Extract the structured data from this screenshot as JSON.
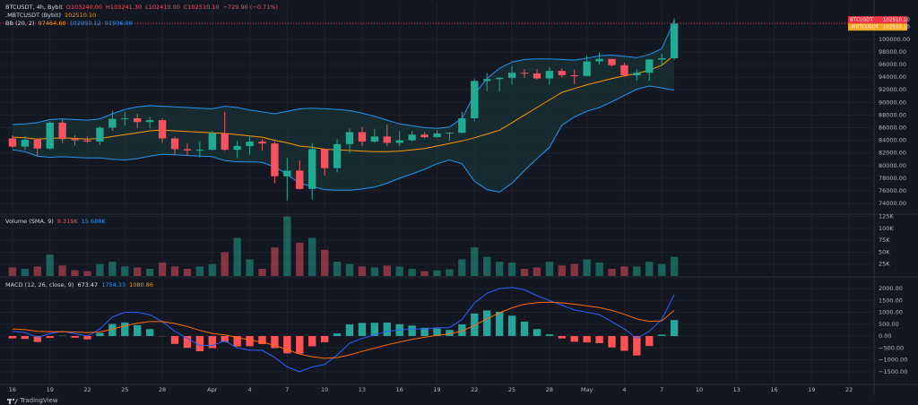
{
  "chart_data": [
    {
      "type": "candlestick",
      "title": "BTCUSDT, 4h, Bybit",
      "header": [
        "O103240.00",
        "H103241.30",
        "L102410.00",
        "C102510.10",
        "−729.90 (−0.71%)"
      ],
      "compare_label": ".MBTCUSDT (Bybit)",
      "compare_value": "102510.10",
      "bb_label": "BB (20, 2)",
      "bb_values": [
        "97464.60",
        "102993.12",
        "91936.08"
      ],
      "x": [
        "03-16",
        "03-17",
        "03-18",
        "03-19",
        "03-20",
        "03-21",
        "03-22",
        "03-23",
        "03-24",
        "03-25",
        "03-26",
        "03-27",
        "03-28",
        "03-29",
        "03-30",
        "03-31",
        "04-01",
        "04-02",
        "04-03",
        "04-04",
        "04-05",
        "04-06",
        "04-07",
        "04-08",
        "04-09",
        "04-10",
        "04-11",
        "04-12",
        "04-13",
        "04-14",
        "04-15",
        "04-16",
        "04-17",
        "04-18",
        "04-19",
        "04-20",
        "04-21",
        "04-22",
        "04-23",
        "04-24",
        "04-25",
        "04-26",
        "04-27",
        "04-28",
        "04-29",
        "04-30",
        "05-01",
        "05-02",
        "05-03",
        "05-04",
        "05-05",
        "05-06",
        "05-07",
        "05-08"
      ],
      "open": [
        84300,
        83000,
        84100,
        82700,
        86800,
        84200,
        84000,
        83800,
        86000,
        87400,
        87500,
        86900,
        87200,
        84300,
        82600,
        82400,
        82500,
        85100,
        82500,
        83100,
        83800,
        83500,
        78300,
        79200,
        76300,
        82600,
        79600,
        83400,
        85300,
        83800,
        84600,
        83600,
        84000,
        84900,
        84500,
        85100,
        85200,
        87500,
        93400,
        93700,
        93900,
        94700,
        94600,
        93800,
        95000,
        94300,
        94200,
        96500,
        96900,
        95900,
        94300,
        94700,
        96800,
        97000
      ],
      "high": [
        84800,
        84700,
        84200,
        87000,
        87400,
        84800,
        84600,
        86200,
        88700,
        88500,
        88200,
        87700,
        87500,
        84600,
        83500,
        83900,
        85500,
        88500,
        83900,
        84700,
        84200,
        83800,
        81200,
        80800,
        83500,
        82700,
        84200,
        85900,
        86100,
        85800,
        86500,
        85500,
        85500,
        85300,
        85600,
        85300,
        88500,
        93800,
        94700,
        94000,
        95800,
        95300,
        95300,
        95600,
        95400,
        95200,
        97400,
        97900,
        96900,
        96300,
        95200,
        96900,
        97700,
        103300
      ],
      "low": [
        82800,
        82500,
        81600,
        82500,
        83600,
        83200,
        83600,
        83300,
        85500,
        86300,
        85900,
        85900,
        83600,
        81600,
        81600,
        81300,
        82400,
        82300,
        81200,
        81700,
        82400,
        77200,
        74500,
        76200,
        74600,
        78400,
        78900,
        82000,
        83100,
        83600,
        83100,
        83100,
        83800,
        84300,
        84400,
        83900,
        85100,
        87000,
        91800,
        91700,
        92800,
        93900,
        93600,
        92800,
        93900,
        92900,
        94100,
        96000,
        95700,
        94100,
        93500,
        93400,
        95800,
        96800
      ],
      "close": [
        83000,
        84100,
        82700,
        86800,
        84200,
        84000,
        83800,
        86000,
        87400,
        87500,
        86900,
        87200,
        84300,
        82600,
        82400,
        82500,
        85100,
        82500,
        83100,
        83800,
        83500,
        78300,
        79200,
        76300,
        82600,
        79600,
        83400,
        85300,
        83800,
        84600,
        83600,
        84000,
        84900,
        84500,
        85100,
        85200,
        87500,
        93400,
        93700,
        93900,
        94700,
        94600,
        93800,
        95000,
        94300,
        94200,
        96500,
        96900,
        95900,
        94300,
        94700,
        96800,
        97000,
        102500
      ],
      "bb_upper": [
        86500,
        86600,
        86800,
        87300,
        87400,
        87300,
        87200,
        87400,
        88200,
        88900,
        89300,
        89500,
        89400,
        89300,
        89200,
        89100,
        89000,
        89400,
        89200,
        88800,
        88500,
        88200,
        88600,
        89000,
        89100,
        89000,
        88900,
        88700,
        88300,
        87800,
        87200,
        86600,
        86300,
        86000,
        85900,
        86100,
        87500,
        91300,
        93800,
        95400,
        96400,
        96800,
        96900,
        96900,
        96800,
        96700,
        97000,
        97400,
        97500,
        97300,
        97100,
        97600,
        98500,
        102993
      ],
      "bb_basis": [
        84500,
        84400,
        84200,
        84300,
        84400,
        84300,
        84200,
        84300,
        84600,
        84900,
        85200,
        85500,
        85600,
        85500,
        85400,
        85300,
        85200,
        85100,
        84900,
        84700,
        84500,
        84000,
        83600,
        83100,
        82900,
        82600,
        82500,
        82400,
        82300,
        82200,
        82200,
        82300,
        82500,
        82700,
        83100,
        83500,
        83900,
        84400,
        85000,
        85600,
        86800,
        88000,
        89200,
        90400,
        91600,
        92200,
        92800,
        93300,
        93800,
        94200,
        94600,
        95100,
        95900,
        97465
      ],
      "bb_lower": [
        82500,
        82200,
        81500,
        81300,
        81400,
        81300,
        81200,
        81200,
        81000,
        80900,
        81100,
        81500,
        81800,
        81700,
        81600,
        81500,
        81400,
        80800,
        80600,
        80600,
        80500,
        79800,
        78600,
        77200,
        76700,
        76200,
        76100,
        76100,
        76300,
        76600,
        77200,
        78000,
        78700,
        79400,
        80300,
        80900,
        80300,
        77500,
        76200,
        75800,
        77200,
        79200,
        81100,
        82900,
        86400,
        87700,
        88600,
        89200,
        90100,
        91100,
        92100,
        92600,
        92300,
        91936
      ],
      "up_color": "#22ab94",
      "down_color": "#f7525f",
      "bb_color": "#2196f3",
      "bb_basis_color": "#ff9800",
      "bb_fill": "#1c3a3a",
      "price_tags": [
        {
          "name": "BTCUSDT",
          "value": 102510.1,
          "label": "102510.10",
          "color": "#f23645"
        },
        {
          "name": ".MBTCUSDT",
          "value": 102510.1,
          "label": "102510.10",
          "color": "#f5a623"
        }
      ],
      "xlim": [
        "03-15",
        "05-24"
      ],
      "xticks": [
        {
          "value": "03-16",
          "label": "16"
        },
        {
          "value": "03-19",
          "label": "19"
        },
        {
          "value": "03-22",
          "label": "22"
        },
        {
          "value": "03-25",
          "label": "25"
        },
        {
          "value": "03-28",
          "label": "28"
        },
        {
          "value": "04-01",
          "label": "Apr"
        },
        {
          "value": "04-04",
          "label": "4"
        },
        {
          "value": "04-07",
          "label": "7"
        },
        {
          "value": "04-10",
          "label": "10"
        },
        {
          "value": "04-13",
          "label": "13"
        },
        {
          "value": "04-16",
          "label": "16"
        },
        {
          "value": "04-19",
          "label": "19"
        },
        {
          "value": "04-22",
          "label": "22"
        },
        {
          "value": "04-25",
          "label": "25"
        },
        {
          "value": "04-28",
          "label": "28"
        },
        {
          "value": "05-01",
          "label": "May"
        },
        {
          "value": "05-04",
          "label": "4"
        },
        {
          "value": "05-07",
          "label": "7"
        },
        {
          "value": "05-10",
          "label": "10"
        },
        {
          "value": "05-13",
          "label": "13"
        },
        {
          "value": "05-16",
          "label": "16"
        },
        {
          "value": "05-19",
          "label": "19"
        },
        {
          "value": "05-22",
          "label": "22"
        }
      ],
      "ylim": [
        72450,
        105800
      ],
      "yticks": [
        {
          "value": 74000,
          "label": "74000.00"
        },
        {
          "value": 76000,
          "label": "76000.00"
        },
        {
          "value": 78000,
          "label": "78000.00"
        },
        {
          "value": 80000,
          "label": "80000.00"
        },
        {
          "value": 82000,
          "label": "82000.00"
        },
        {
          "value": 84000,
          "label": "84000.00"
        },
        {
          "value": 86000,
          "label": "86000.00"
        },
        {
          "value": 88000,
          "label": "88000.00"
        },
        {
          "value": 90000,
          "label": "90000.00"
        },
        {
          "value": 92000,
          "label": "92000.00"
        },
        {
          "value": 94000,
          "label": "94000.00"
        },
        {
          "value": 96000,
          "label": "96000.00"
        },
        {
          "value": 98000,
          "label": "98000.00"
        },
        {
          "value": 100000,
          "label": "100000.00"
        }
      ],
      "grid": true
    },
    {
      "type": "bar",
      "title": "Volume (SMA, 9)",
      "header": [
        "9.319K",
        "15.688K"
      ],
      "values": [
        18000,
        15000,
        20000,
        45000,
        22000,
        12000,
        10000,
        25000,
        30000,
        20000,
        18000,
        15000,
        28000,
        20000,
        15000,
        20000,
        25000,
        50000,
        80000,
        35000,
        15000,
        60000,
        125000,
        70000,
        80000,
        55000,
        30000,
        25000,
        20000,
        18000,
        22000,
        20000,
        15000,
        10000,
        12000,
        14000,
        35000,
        60000,
        40000,
        30000,
        28000,
        15000,
        18000,
        30000,
        22000,
        25000,
        35000,
        28000,
        15000,
        20000,
        20000,
        30000,
        25000,
        40000
      ],
      "up_color": "rgba(34,171,148,0.5)",
      "down_color": "rgba(247,82,95,0.5)",
      "ylim": [
        0,
        128000
      ],
      "yticks": [
        {
          "value": 25000,
          "label": "25K"
        },
        {
          "value": 50000,
          "label": "50K"
        },
        {
          "value": 75000,
          "label": "75K"
        },
        {
          "value": 100000,
          "label": "100K"
        },
        {
          "value": 125000,
          "label": "125K"
        }
      ],
      "grid": true
    },
    {
      "type": "macd",
      "title": "MACD (12, 26, close, 9)",
      "header": [
        "673.47",
        "1754.33",
        "1080.86"
      ],
      "macd": [
        200,
        150,
        -50,
        100,
        200,
        100,
        0,
        300,
        800,
        1000,
        1000,
        900,
        600,
        200,
        -100,
        -400,
        -400,
        -200,
        -500,
        -600,
        -600,
        -900,
        -1300,
        -1500,
        -1300,
        -1200,
        -800,
        -300,
        -100,
        50,
        200,
        250,
        300,
        300,
        350,
        350,
        700,
        1400,
        1800,
        2000,
        2050,
        1950,
        1700,
        1500,
        1300,
        1100,
        1000,
        900,
        600,
        300,
        -100,
        200,
        700,
        1754.33
      ],
      "signal": [
        300,
        270,
        200,
        180,
        185,
        170,
        140,
        170,
        290,
        430,
        540,
        610,
        610,
        530,
        400,
        240,
        110,
        50,
        -60,
        -170,
        -260,
        -390,
        -570,
        -760,
        -870,
        -940,
        -910,
        -790,
        -650,
        -510,
        -370,
        -250,
        -140,
        -50,
        30,
        90,
        210,
        450,
        720,
        980,
        1190,
        1340,
        1410,
        1430,
        1400,
        1340,
        1270,
        1200,
        1080,
        920,
        720,
        620,
        640,
        1080.86
      ],
      "histogram": [
        -100,
        -120,
        -250,
        -80,
        15,
        -70,
        -140,
        130,
        510,
        570,
        460,
        290,
        -10,
        -330,
        -500,
        -640,
        -510,
        -250,
        -440,
        -430,
        -340,
        -510,
        -730,
        -740,
        -430,
        -260,
        110,
        490,
        550,
        560,
        570,
        500,
        440,
        350,
        320,
        260,
        490,
        950,
        1080,
        1020,
        860,
        610,
        290,
        70,
        -100,
        -240,
        -270,
        -300,
        -480,
        -620,
        -820,
        -420,
        60,
        673.47
      ],
      "macd_color": "#2962ff",
      "signal_color": "#ff6d00",
      "pos_color": "#26a69a",
      "neg_color": "#ff5252",
      "ylim": [
        -2000,
        2380
      ],
      "yticks": [
        {
          "value": -1500,
          "label": "−1500.00"
        },
        {
          "value": -1000,
          "label": "−1000.00"
        },
        {
          "value": -500,
          "label": "−500.00"
        },
        {
          "value": 0,
          "label": "0.00"
        },
        {
          "value": 500,
          "label": "500.00"
        },
        {
          "value": 1000,
          "label": "1000.00"
        },
        {
          "value": 1500,
          "label": "1500.00"
        },
        {
          "value": 2000,
          "label": "2000.00"
        }
      ],
      "grid": true
    }
  ],
  "footer": "TradingView"
}
